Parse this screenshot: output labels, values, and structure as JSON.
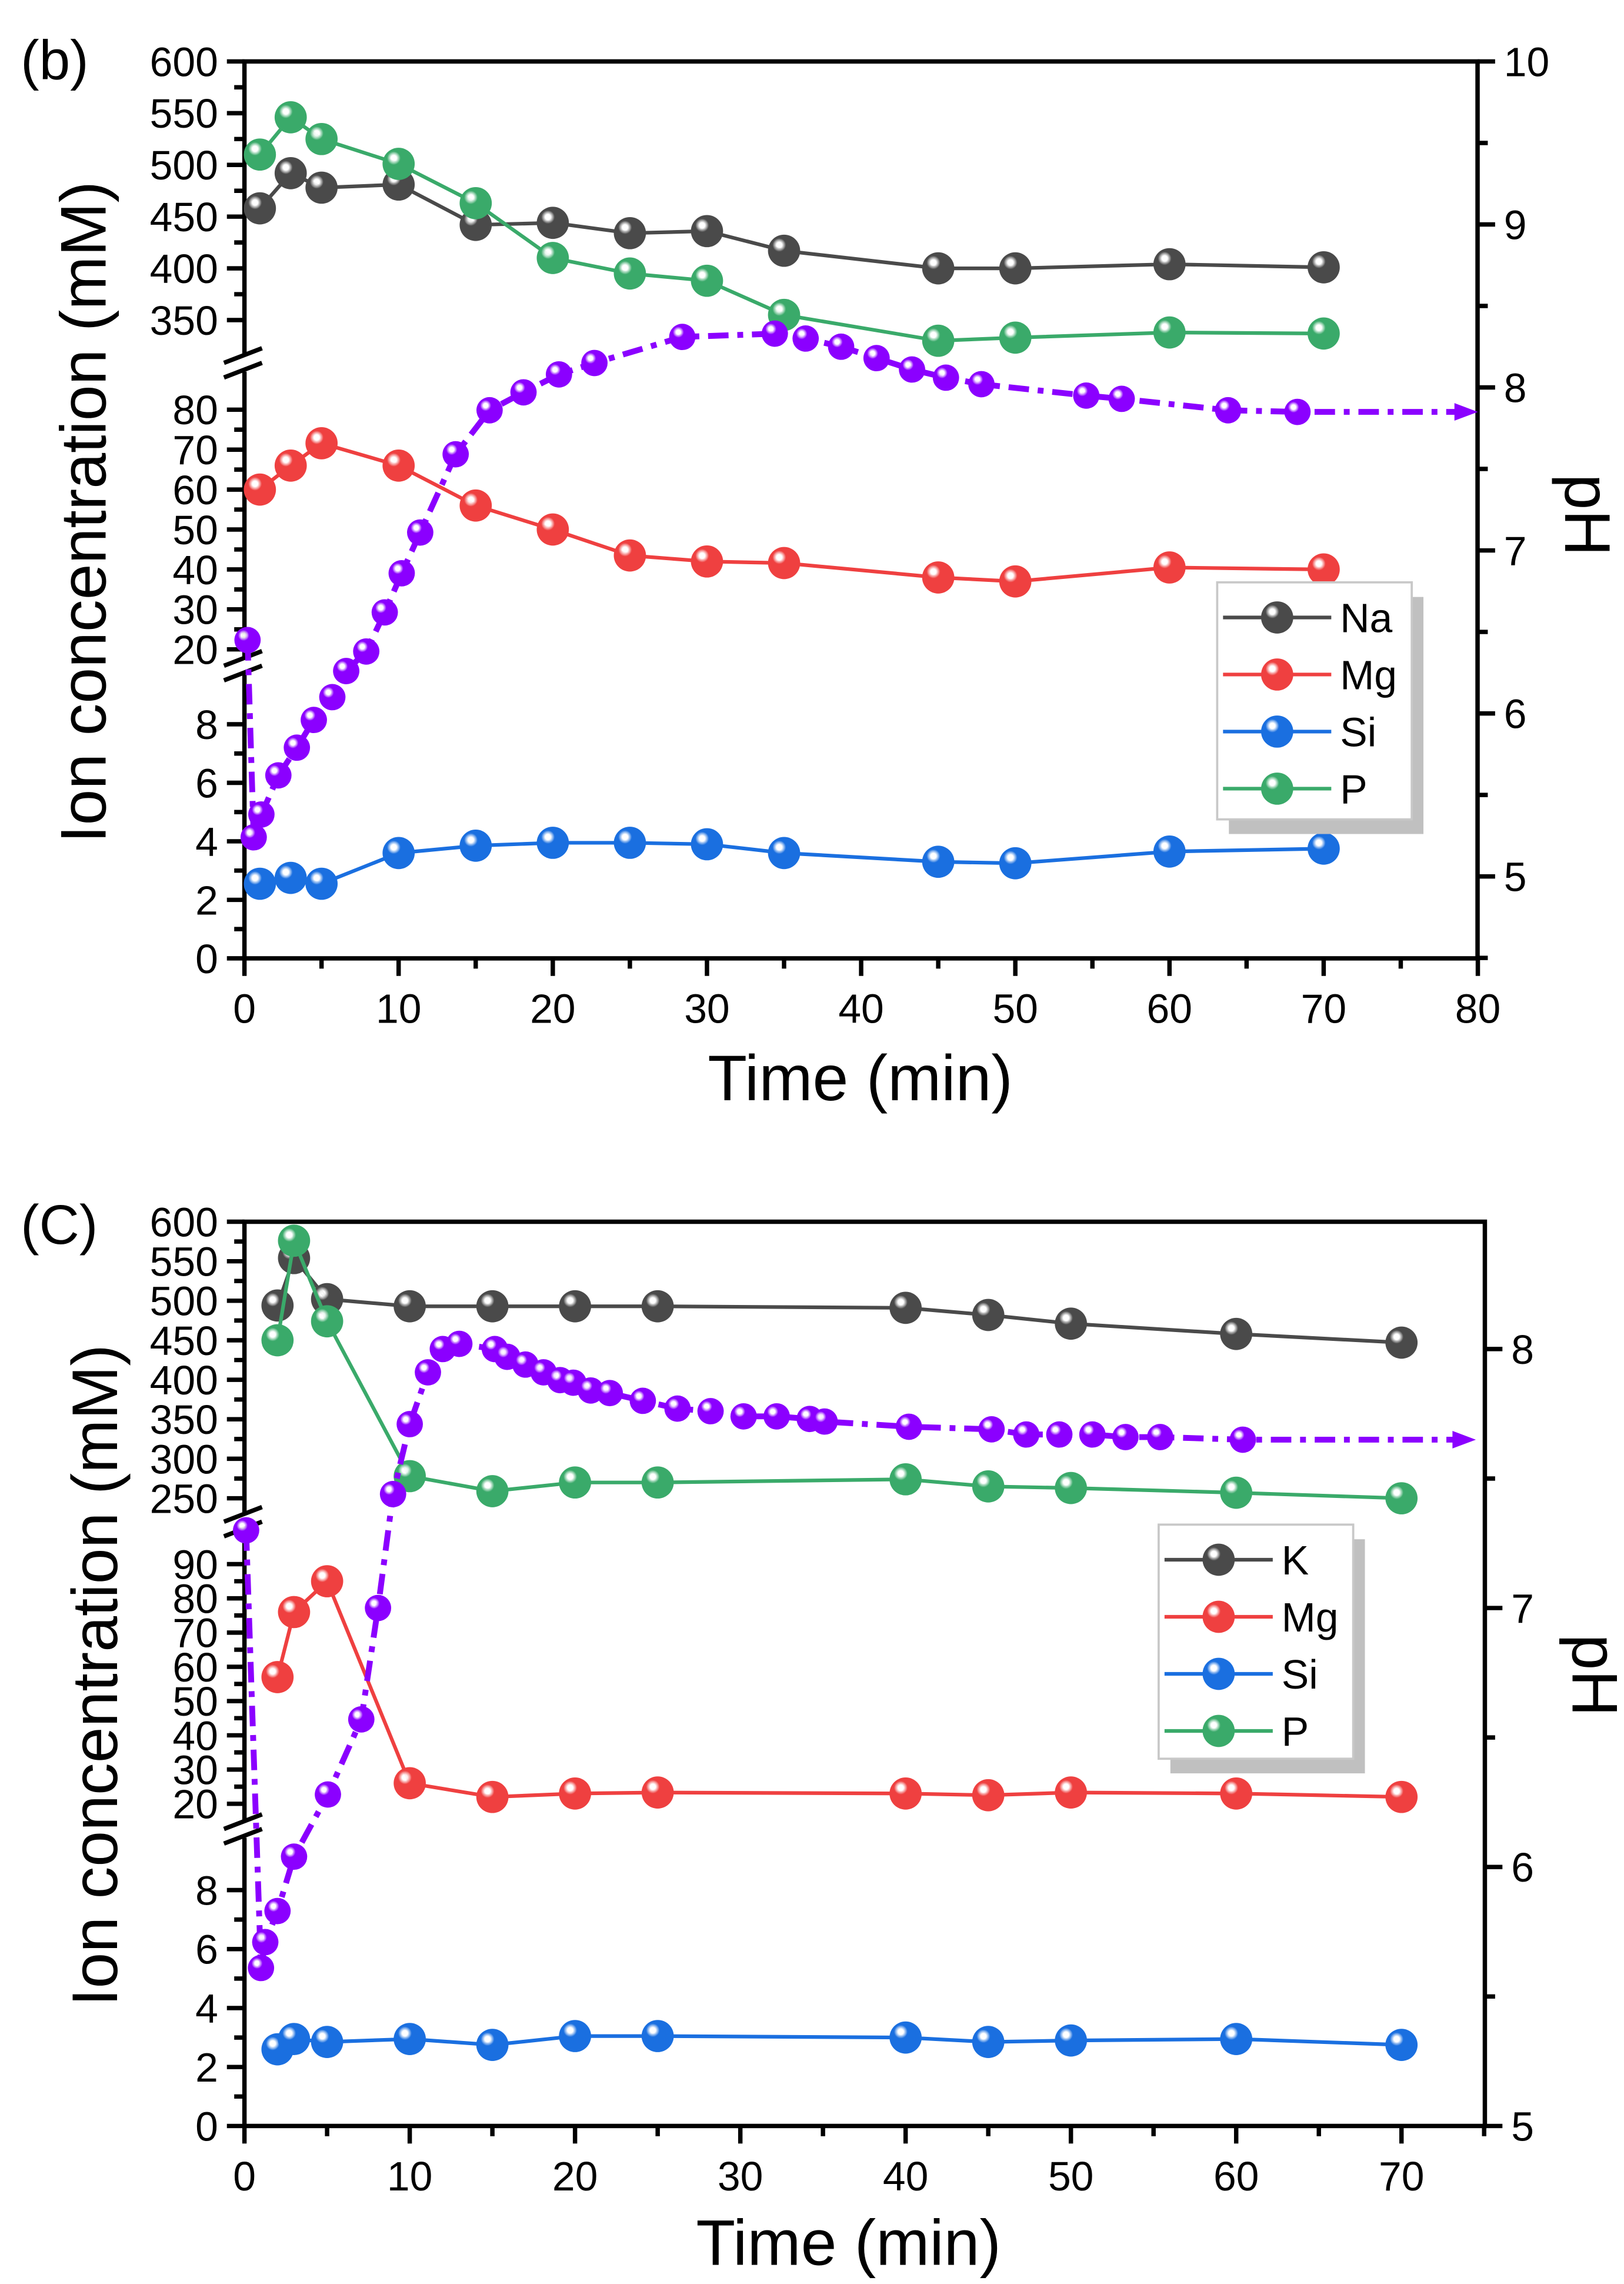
{
  "chart_data": [
    {
      "type": "line",
      "panel_label": "(b)",
      "xlabel": "Time (min)",
      "ylabel": "Ion concentration (mM)",
      "y2label": "pH",
      "xlim": [
        0,
        80
      ],
      "x_ticks": [
        "0",
        "10",
        "20",
        "30",
        "40",
        "50",
        "60",
        "70",
        "80"
      ],
      "y_ticks": [
        "0",
        "2",
        "4",
        "6",
        "8",
        "20",
        "30",
        "40",
        "50",
        "60",
        "70",
        "80",
        "350",
        "400",
        "450",
        "500",
        "550",
        "600"
      ],
      "y2_ticks": [
        "5",
        "6",
        "7",
        "8",
        "9",
        "10"
      ],
      "y2lim": [
        4.5,
        10
      ],
      "y_axis_breaks": [
        [
          9.5,
          15
        ],
        [
          85,
          320
        ]
      ],
      "legend_position": "center-right",
      "series": [
        {
          "name": "Na",
          "color": "#4a4a4a",
          "x": [
            1,
            3,
            5,
            10,
            15,
            20,
            25,
            30,
            35,
            45,
            50,
            60,
            70
          ],
          "y": [
            458,
            492,
            478,
            481,
            442,
            444,
            434,
            436,
            417,
            400,
            400,
            404,
            401
          ]
        },
        {
          "name": "Mg",
          "color": "#ef4040",
          "x": [
            1,
            3,
            5,
            10,
            15,
            20,
            25,
            30,
            35,
            45,
            50,
            60,
            70
          ],
          "y": [
            60,
            66,
            71.6,
            66,
            56,
            50,
            43.5,
            42,
            41.6,
            38,
            37,
            40.5,
            40
          ]
        },
        {
          "name": "Si",
          "color": "#1a6fe0",
          "x": [
            1,
            3,
            5,
            10,
            15,
            20,
            25,
            30,
            35,
            45,
            50,
            60,
            70
          ],
          "y": [
            2.55,
            2.75,
            2.55,
            3.6,
            3.85,
            3.95,
            3.95,
            3.9,
            3.6,
            3.3,
            3.25,
            3.65,
            3.75
          ]
        },
        {
          "name": "P",
          "color": "#3aaa6a",
          "x": [
            1,
            3,
            5,
            10,
            15,
            20,
            25,
            30,
            35,
            45,
            50,
            60,
            70
          ],
          "y": [
            510,
            546,
            525,
            501,
            463,
            410,
            395,
            388,
            355,
            330,
            333,
            338,
            337
          ]
        },
        {
          "name": "pH",
          "axis": "right",
          "color": "#8b00ff",
          "x": [
            0.2,
            0.6,
            1.1,
            2.2,
            3.4,
            4.5,
            5.7,
            6.6,
            7.9,
            9.1,
            10.2,
            11.4,
            13.7,
            15.9,
            18.1,
            20.4,
            22.7,
            28.4,
            34.4,
            36.4,
            38.7,
            41,
            43.3,
            45.5,
            47.8,
            54.6,
            56.9,
            63.8,
            68.3
          ],
          "y": [
            6.45,
            5.24,
            5.38,
            5.62,
            5.79,
            5.96,
            6.1,
            6.26,
            6.38,
            6.62,
            6.86,
            7.11,
            7.59,
            7.86,
            7.97,
            8.08,
            8.15,
            8.31,
            8.33,
            8.3,
            8.25,
            8.18,
            8.11,
            8.06,
            8.02,
            7.95,
            7.93,
            7.86,
            7.85
          ]
        }
      ]
    },
    {
      "type": "line",
      "panel_label": "(C)",
      "xlabel": "Time (min)",
      "ylabel": "Ion concentration (mM)",
      "y2label": "pH",
      "xlim": [
        0,
        75
      ],
      "x_ticks": [
        "0",
        "10",
        "20",
        "30",
        "40",
        "50",
        "60",
        "70"
      ],
      "y_ticks": [
        "0",
        "2",
        "4",
        "6",
        "8",
        "20",
        "30",
        "40",
        "50",
        "60",
        "70",
        "80",
        "90",
        "250",
        "300",
        "350",
        "400",
        "450",
        "500",
        "550",
        "600"
      ],
      "y2_ticks": [
        "5",
        "6",
        "7",
        "8"
      ],
      "y2lim": [
        5,
        8.49
      ],
      "y_axis_breaks": [
        [
          9.5,
          15
        ],
        [
          95,
          230
        ]
      ],
      "legend_position": "center-right",
      "series": [
        {
          "name": "K",
          "color": "#4a4a4a",
          "x": [
            2,
            3,
            5,
            10,
            15,
            20,
            25,
            40,
            45,
            50,
            60,
            70
          ],
          "y": [
            494,
            554,
            502,
            493,
            493,
            493,
            493,
            491,
            482,
            471,
            458,
            447
          ]
        },
        {
          "name": "Mg",
          "color": "#ef4040",
          "x": [
            2,
            3,
            5,
            10,
            15,
            20,
            25,
            40,
            45,
            50,
            60,
            70
          ],
          "y": [
            57,
            76,
            85,
            26,
            22,
            23,
            23.3,
            23,
            22.5,
            23.3,
            23,
            22
          ]
        },
        {
          "name": "Si",
          "color": "#1a6fe0",
          "x": [
            2,
            3,
            5,
            10,
            15,
            20,
            25,
            40,
            45,
            50,
            60,
            70
          ],
          "y": [
            2.6,
            2.95,
            2.85,
            2.95,
            2.75,
            3.05,
            3.05,
            3.0,
            2.85,
            2.9,
            2.95,
            2.75
          ]
        },
        {
          "name": "P",
          "color": "#3aaa6a",
          "x": [
            2,
            3,
            5,
            10,
            15,
            20,
            25,
            40,
            45,
            50,
            60,
            70
          ],
          "y": [
            450,
            576,
            474,
            278,
            259,
            270,
            270,
            274,
            265,
            263,
            257,
            250
          ]
        },
        {
          "name": "pH",
          "axis": "right",
          "color": "#8b00ff",
          "x": [
            0.1,
            1.0,
            1.26,
            2.0,
            3.0,
            5.05,
            7.07,
            8.08,
            8.99,
            10.0,
            11.1,
            12.0,
            13.0,
            15.15,
            15.9,
            17.0,
            18.1,
            19.1,
            19.9,
            20.95,
            22.1,
            24.1,
            26.2,
            28.2,
            30.2,
            32.2,
            34.2,
            35.1,
            40.2,
            45.2,
            47.3,
            49.3,
            51.3,
            53.3,
            55.4,
            60.4
          ],
          "y": [
            7.3,
            5.61,
            5.71,
            5.83,
            6.04,
            6.28,
            6.57,
            7.0,
            7.44,
            7.71,
            7.91,
            8.0,
            8.02,
            8.0,
            7.97,
            7.94,
            7.91,
            7.88,
            7.87,
            7.84,
            7.83,
            7.8,
            7.77,
            7.76,
            7.74,
            7.74,
            7.73,
            7.72,
            7.7,
            7.69,
            7.67,
            7.67,
            7.67,
            7.66,
            7.66,
            7.65
          ]
        }
      ]
    }
  ]
}
